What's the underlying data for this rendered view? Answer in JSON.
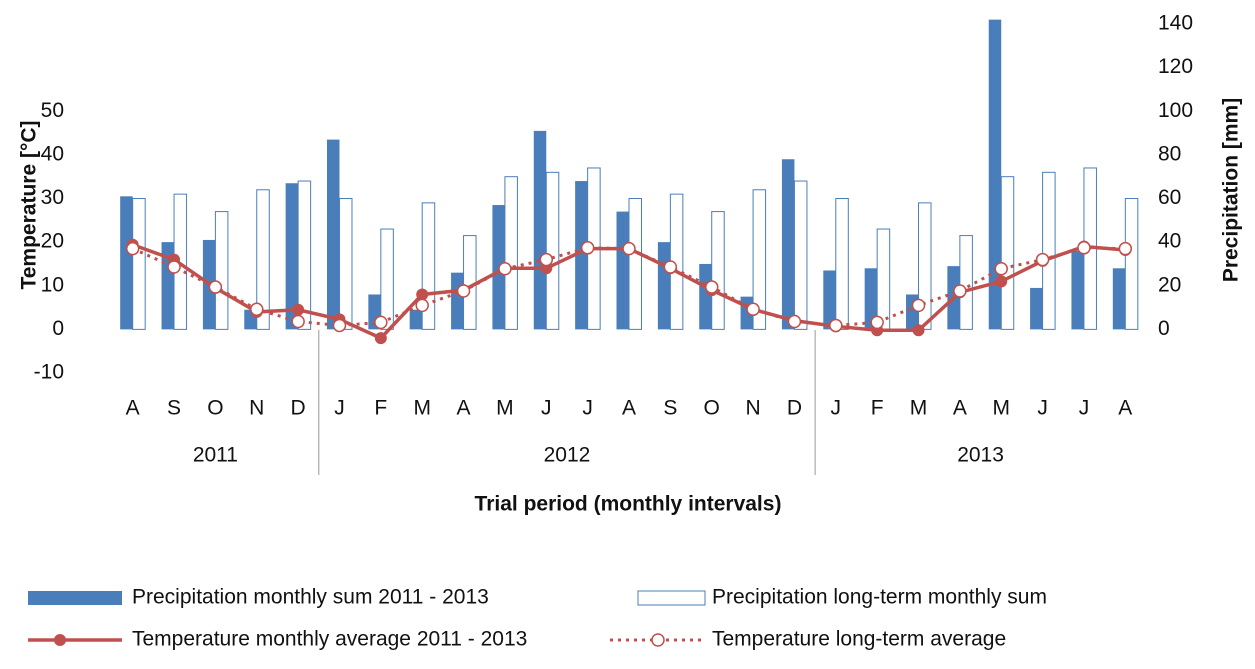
{
  "chart_data": {
    "type": "bar-line",
    "categories": [
      "A",
      "S",
      "O",
      "N",
      "D",
      "J",
      "F",
      "M",
      "A",
      "M",
      "J",
      "J",
      "A",
      "S",
      "O",
      "N",
      "D",
      "J",
      "F",
      "M",
      "A",
      "M",
      "J",
      "J",
      "A"
    ],
    "year_groups": [
      {
        "label": "2011",
        "span": 5
      },
      {
        "label": "2012",
        "span": 12
      },
      {
        "label": "2013",
        "span": 8
      }
    ],
    "xlabel": "Trial period (monthly intervals)",
    "ylabel": "Temperature [°C]",
    "y2label": "Precipitation [mm]",
    "ylim": [
      -10,
      70
    ],
    "yticks": [
      -10,
      0,
      10,
      20,
      30,
      40,
      50
    ],
    "y2lim": [
      -20,
      140
    ],
    "y2ticks": [
      0,
      20,
      40,
      60,
      80,
      100,
      120,
      140
    ],
    "legend": "bottom",
    "series": [
      {
        "name": "Precipitation monthly sum 2011 - 2013",
        "kind": "bar",
        "axis": "y2",
        "color": "#4a7ebb",
        "values": [
          61,
          40,
          41,
          9,
          67,
          87,
          16,
          9,
          26,
          57,
          91,
          68,
          54,
          40,
          30,
          15,
          78,
          27,
          28,
          16,
          29,
          142,
          19,
          36,
          28
        ]
      },
      {
        "name": "Precipitation long-term monthly sum",
        "kind": "bar",
        "axis": "y2",
        "color": "#4a7ebb",
        "values": [
          60,
          62,
          54,
          64,
          68,
          60,
          46,
          58,
          43,
          70,
          72,
          74,
          60,
          62,
          54,
          64,
          68,
          60,
          46,
          58,
          43,
          70,
          72,
          74,
          60
        ]
      },
      {
        "name": "Temperature monthly average 2011 - 2013",
        "kind": "line",
        "color": "#c0504d",
        "values": [
          19.4,
          16,
          9.5,
          4,
          4.5,
          2.3,
          -2,
          8,
          9,
          14,
          14,
          18.5,
          18.5,
          14,
          9,
          4.6,
          2,
          0.7,
          -0.2,
          -0.2,
          8.5,
          11,
          15.7,
          19,
          18.2
        ]
      },
      {
        "name": "Temperature long-term average",
        "kind": "dotted",
        "color": "#c0504d",
        "values": [
          18.5,
          14.3,
          9.7,
          4.6,
          1.8,
          0.9,
          1.6,
          5.5,
          8.8,
          13.9,
          16,
          18.7,
          18.5,
          14.3,
          9.7,
          4.6,
          1.8,
          0.9,
          1.6,
          5.5,
          8.8,
          13.9,
          16,
          18.7,
          18.5
        ]
      }
    ]
  }
}
